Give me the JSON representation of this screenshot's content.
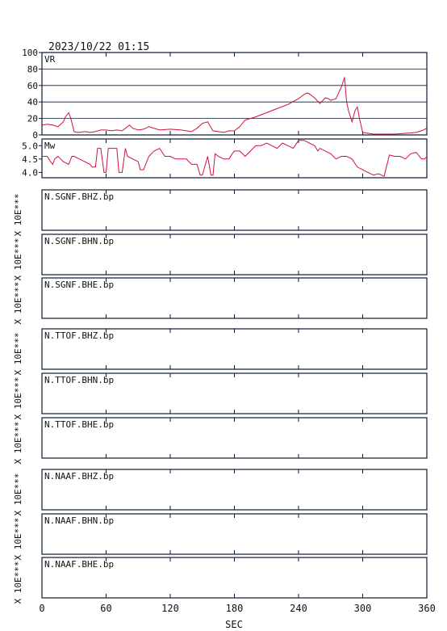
{
  "timestamp": "2023/10/22 01:15",
  "x_axis": {
    "label": "SEC",
    "ticks": [
      0,
      60,
      120,
      180,
      240,
      300,
      360
    ],
    "range": [
      0,
      360
    ]
  },
  "colors": {
    "trace": "#d01040",
    "frame": "#0a1a33"
  },
  "chart_data": [
    {
      "type": "line",
      "panel_label": "VR",
      "ylim": [
        0,
        100
      ],
      "yticks": [
        0,
        20,
        40,
        60,
        80,
        100
      ],
      "grid": true,
      "x": [
        0,
        5,
        10,
        15,
        20,
        22,
        25,
        27,
        30,
        33,
        35,
        40,
        45,
        50,
        55,
        60,
        65,
        70,
        75,
        80,
        82,
        85,
        90,
        95,
        100,
        110,
        120,
        130,
        140,
        145,
        150,
        155,
        158,
        160,
        165,
        170,
        175,
        180,
        185,
        190,
        200,
        210,
        220,
        230,
        240,
        245,
        248,
        250,
        255,
        260,
        265,
        268,
        270,
        275,
        280,
        283,
        285,
        287,
        290,
        293,
        295,
        297,
        300,
        305,
        310,
        320,
        330,
        340,
        350,
        355,
        360
      ],
      "values": [
        12,
        13,
        12,
        10,
        16,
        22,
        27,
        20,
        4,
        3,
        3,
        4,
        3,
        4,
        6,
        6,
        5,
        6,
        5,
        10,
        12,
        8,
        6,
        7,
        10,
        6,
        7,
        6,
        4,
        8,
        14,
        16,
        9,
        5,
        4,
        3,
        5,
        5,
        10,
        18,
        22,
        27,
        32,
        37,
        44,
        49,
        51,
        50,
        45,
        38,
        45,
        44,
        42,
        44,
        58,
        70,
        40,
        28,
        16,
        30,
        34,
        20,
        3,
        2,
        1,
        1,
        1,
        2,
        3,
        5,
        8
      ]
    },
    {
      "type": "line",
      "panel_label": "Mw",
      "ylim": [
        3.8,
        5.25
      ],
      "yticks": [
        4.0,
        4.5,
        5.0
      ],
      "grid": false,
      "x": [
        0,
        5,
        8,
        10,
        12,
        15,
        20,
        25,
        28,
        30,
        35,
        40,
        45,
        47,
        50,
        52,
        55,
        58,
        60,
        62,
        65,
        70,
        72,
        75,
        78,
        80,
        85,
        90,
        92,
        95,
        100,
        105,
        110,
        115,
        120,
        125,
        130,
        135,
        140,
        145,
        148,
        150,
        155,
        158,
        160,
        162,
        165,
        170,
        175,
        178,
        180,
        185,
        190,
        195,
        200,
        205,
        210,
        215,
        220,
        225,
        230,
        235,
        240,
        245,
        250,
        255,
        258,
        260,
        265,
        270,
        275,
        280,
        285,
        290,
        295,
        300,
        305,
        310,
        315,
        320,
        325,
        330,
        335,
        340,
        345,
        350,
        355,
        358,
        360
      ],
      "values": [
        4.6,
        4.6,
        4.4,
        4.3,
        4.5,
        4.6,
        4.4,
        4.3,
        4.6,
        4.6,
        4.5,
        4.4,
        4.3,
        4.2,
        4.2,
        4.9,
        4.9,
        4.0,
        4.0,
        4.9,
        4.9,
        4.9,
        4.0,
        4.0,
        4.9,
        4.6,
        4.5,
        4.4,
        4.1,
        4.1,
        4.6,
        4.8,
        4.9,
        4.6,
        4.6,
        4.5,
        4.5,
        4.5,
        4.3,
        4.3,
        3.9,
        3.9,
        4.6,
        3.9,
        3.9,
        4.7,
        4.6,
        4.5,
        4.5,
        4.7,
        4.8,
        4.8,
        4.6,
        4.8,
        5.0,
        5.0,
        5.1,
        5.0,
        4.9,
        5.1,
        5.0,
        4.9,
        5.2,
        5.2,
        5.1,
        5.0,
        4.8,
        4.9,
        4.8,
        4.7,
        4.5,
        4.6,
        4.6,
        4.5,
        4.2,
        4.1,
        4.0,
        3.9,
        3.95,
        3.85,
        4.65,
        4.6,
        4.6,
        4.5,
        4.7,
        4.75,
        4.5,
        4.5,
        4.6
      ]
    }
  ],
  "stations": [
    {
      "label": "N.SGNF.BHZ.bp",
      "ylabel": "X 10E***"
    },
    {
      "label": "N.SGNF.BHN.bp",
      "ylabel": "X 10E***"
    },
    {
      "label": "N.SGNF.BHE.bp",
      "ylabel": "X 10E***"
    },
    {
      "label": "N.TTOF.BHZ.bp",
      "ylabel": "X 10E***"
    },
    {
      "label": "N.TTOF.BHN.bp",
      "ylabel": "X 10E***"
    },
    {
      "label": "N.TTOF.BHE.bp",
      "ylabel": "X 10E***"
    },
    {
      "label": "N.NAAF.BHZ.bp",
      "ylabel": "X 10E***"
    },
    {
      "label": "N.NAAF.BHN.bp",
      "ylabel": "X 10E***"
    },
    {
      "label": "N.NAAF.BHE.bp",
      "ylabel": "X 10E***"
    }
  ]
}
